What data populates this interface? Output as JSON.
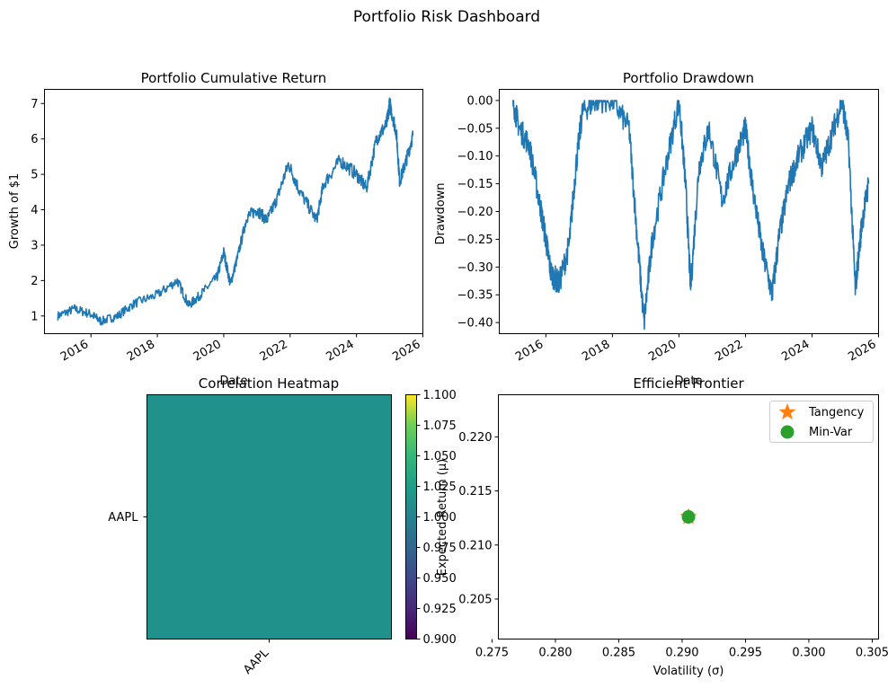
{
  "figure": {
    "title": "Portfolio Risk Dashboard"
  },
  "colors": {
    "line": "#1f77b4",
    "tangency": "#ff7f0e",
    "minvar": "#2ca02c",
    "heat": "#21918c"
  },
  "chart_data": [
    {
      "type": "line",
      "title": "Portfolio Cumulative Return",
      "xlabel": "Date",
      "ylabel": "Growth of $1",
      "xlim": [
        2014.6,
        2026.0
      ],
      "ylim": [
        0.5,
        7.4
      ],
      "xticks": [
        2016,
        2018,
        2020,
        2022,
        2024,
        2026
      ],
      "xtick_labels": [
        "2016",
        "2018",
        "2020",
        "2022",
        "2024",
        "2026"
      ],
      "yticks": [
        1,
        2,
        3,
        4,
        5,
        6,
        7
      ],
      "ytick_labels": [
        "1",
        "2",
        "3",
        "4",
        "5",
        "6",
        "7"
      ],
      "series": [
        {
          "x": [
            2015.0,
            2015.5,
            2016.0,
            2016.3,
            2016.8,
            2017.3,
            2018.0,
            2018.6,
            2018.95,
            2019.3,
            2019.8,
            2020.0,
            2020.2,
            2020.4,
            2020.7,
            2021.0,
            2021.3,
            2021.6,
            2021.95,
            2022.3,
            2022.8,
            2023.0,
            2023.5,
            2024.0,
            2024.3,
            2024.6,
            2024.9,
            2025.0,
            2025.2,
            2025.3,
            2025.5,
            2025.7
          ],
          "y": [
            1.0,
            1.2,
            1.05,
            0.85,
            1.0,
            1.35,
            1.6,
            2.0,
            1.3,
            1.6,
            2.1,
            2.8,
            1.9,
            2.6,
            3.8,
            4.0,
            3.7,
            4.3,
            5.3,
            4.5,
            3.7,
            4.7,
            5.4,
            5.0,
            4.6,
            6.0,
            6.4,
            7.0,
            6.2,
            4.8,
            5.4,
            6.1
          ]
        }
      ]
    },
    {
      "type": "line",
      "title": "Portfolio Drawdown",
      "xlabel": "Date",
      "ylabel": "Drawdown",
      "xlim": [
        2014.6,
        2026.0
      ],
      "ylim": [
        -0.42,
        0.02
      ],
      "xticks": [
        2016,
        2018,
        2020,
        2022,
        2024,
        2026
      ],
      "xtick_labels": [
        "2016",
        "2018",
        "2020",
        "2022",
        "2024",
        "2026"
      ],
      "yticks": [
        0.0,
        -0.05,
        -0.1,
        -0.15,
        -0.2,
        -0.25,
        -0.3,
        -0.35,
        -0.4
      ],
      "ytick_labels": [
        "0.00",
        "−0.05",
        "−0.10",
        "−0.15",
        "−0.20",
        "−0.25",
        "−0.30",
        "−0.35",
        "−0.40"
      ],
      "series": [
        {
          "x": [
            2015.0,
            2015.2,
            2015.5,
            2015.8,
            2016.0,
            2016.15,
            2016.4,
            2016.7,
            2016.9,
            2017.1,
            2017.5,
            2018.0,
            2018.5,
            2018.75,
            2018.95,
            2019.2,
            2019.6,
            2020.0,
            2020.2,
            2020.35,
            2020.6,
            2020.9,
            2021.3,
            2021.7,
            2022.0,
            2022.2,
            2022.5,
            2022.8,
            2023.0,
            2023.3,
            2023.6,
            2024.0,
            2024.3,
            2024.6,
            2024.9,
            2025.1,
            2025.3,
            2025.5,
            2025.7
          ],
          "y": [
            0.0,
            -0.05,
            -0.08,
            -0.18,
            -0.25,
            -0.31,
            -0.33,
            -0.26,
            -0.12,
            -0.02,
            0.0,
            0.0,
            -0.05,
            -0.25,
            -0.4,
            -0.25,
            -0.12,
            0.0,
            -0.15,
            -0.34,
            -0.12,
            -0.05,
            -0.18,
            -0.1,
            -0.05,
            -0.15,
            -0.27,
            -0.35,
            -0.25,
            -0.15,
            -0.1,
            -0.05,
            -0.12,
            -0.06,
            0.0,
            -0.08,
            -0.34,
            -0.22,
            -0.15
          ]
        }
      ]
    },
    {
      "type": "heatmap",
      "title": "Correlation Heatmap",
      "rows": [
        "AAPL"
      ],
      "cols": [
        "AAPL"
      ],
      "values": [
        [
          1.0
        ]
      ],
      "colorbar": {
        "range": [
          0.9,
          1.1
        ],
        "ticks": [
          0.9,
          0.925,
          0.95,
          0.975,
          1.0,
          1.025,
          1.05,
          1.075,
          1.1
        ],
        "tick_labels": [
          "0.900",
          "0.925",
          "0.950",
          "0.975",
          "1.000",
          "1.025",
          "1.050",
          "1.075",
          "1.100"
        ]
      }
    },
    {
      "type": "scatter",
      "title": "Efficient Frontier",
      "xlabel": "Volatility (σ)",
      "ylabel": "Expected Return (μ)",
      "xlim": [
        0.2755,
        0.3055
      ],
      "ylim": [
        0.2013,
        0.2239
      ],
      "xticks": [
        0.275,
        0.28,
        0.285,
        0.29,
        0.295,
        0.3,
        0.305
      ],
      "xtick_labels": [
        "0.275",
        "0.280",
        "0.285",
        "0.290",
        "0.295",
        "0.300",
        "0.305"
      ],
      "yticks": [
        0.205,
        0.21,
        0.215,
        0.22
      ],
      "ytick_labels": [
        "0.205",
        "0.210",
        "0.215",
        "0.220"
      ],
      "legend_position": "top-right",
      "series": [
        {
          "name": "Tangency",
          "marker": "star",
          "x": [
            0.2905
          ],
          "y": [
            0.2126
          ]
        },
        {
          "name": "Min-Var",
          "marker": "circle",
          "x": [
            0.2905
          ],
          "y": [
            0.2126
          ]
        }
      ]
    }
  ]
}
